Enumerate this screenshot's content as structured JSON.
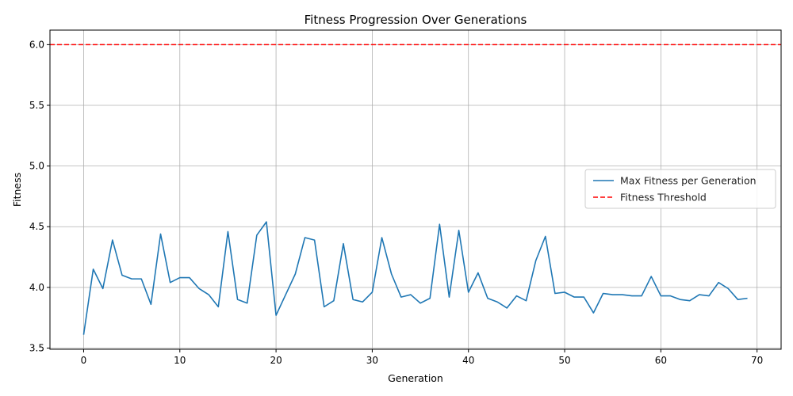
{
  "chart_data": {
    "type": "line",
    "title": "Fitness Progression Over Generations",
    "xlabel": "Generation",
    "ylabel": "Fitness",
    "xlim": [
      -3.5,
      72.5
    ],
    "ylim": [
      3.49,
      6.12
    ],
    "xticks": [
      0,
      10,
      20,
      30,
      40,
      50,
      60,
      70
    ],
    "yticks": [
      3.5,
      4.0,
      4.5,
      5.0,
      5.5,
      6.0
    ],
    "xtick_labels": [
      "0",
      "10",
      "20",
      "30",
      "40",
      "50",
      "60",
      "70"
    ],
    "ytick_labels": [
      "3.5",
      "4.0",
      "4.5",
      "5.0",
      "5.5",
      "6.0"
    ],
    "grid": true,
    "legend_position": "center-right",
    "series": [
      {
        "name": "Max Fitness per Generation",
        "color": "#1f77b4",
        "style": "solid",
        "x": [
          0,
          1,
          2,
          3,
          4,
          5,
          6,
          7,
          8,
          9,
          10,
          11,
          12,
          13,
          14,
          15,
          16,
          17,
          18,
          19,
          20,
          21,
          22,
          23,
          24,
          25,
          26,
          27,
          28,
          29,
          30,
          31,
          32,
          33,
          34,
          35,
          36,
          37,
          38,
          39,
          40,
          41,
          42,
          43,
          44,
          45,
          46,
          47,
          48,
          49,
          50,
          51,
          52,
          53,
          54,
          55,
          56,
          57,
          58,
          59,
          60,
          61,
          62,
          63,
          64,
          65,
          66,
          67,
          68,
          69
        ],
        "values": [
          3.61,
          4.15,
          3.99,
          4.39,
          4.1,
          4.07,
          4.07,
          3.86,
          4.44,
          4.04,
          4.08,
          4.08,
          3.99,
          3.94,
          3.84,
          4.46,
          3.9,
          3.87,
          4.43,
          4.54,
          3.77,
          3.94,
          4.11,
          4.41,
          4.39,
          3.84,
          3.89,
          4.36,
          3.9,
          3.88,
          3.96,
          4.41,
          4.11,
          3.92,
          3.94,
          3.87,
          3.91,
          4.52,
          3.92,
          4.47,
          3.96,
          4.12,
          3.91,
          3.88,
          3.83,
          3.93,
          3.89,
          4.22,
          4.42,
          3.95,
          3.96,
          3.92,
          3.92,
          3.79,
          3.95,
          3.94,
          3.94,
          3.93,
          3.93,
          4.09,
          3.93,
          3.93,
          3.9,
          3.89,
          3.94,
          3.93,
          4.04,
          3.99,
          3.9,
          3.91
        ]
      },
      {
        "name": "Fitness Threshold",
        "color": "#ff0000",
        "style": "dashed",
        "constant": 6.0
      }
    ]
  }
}
